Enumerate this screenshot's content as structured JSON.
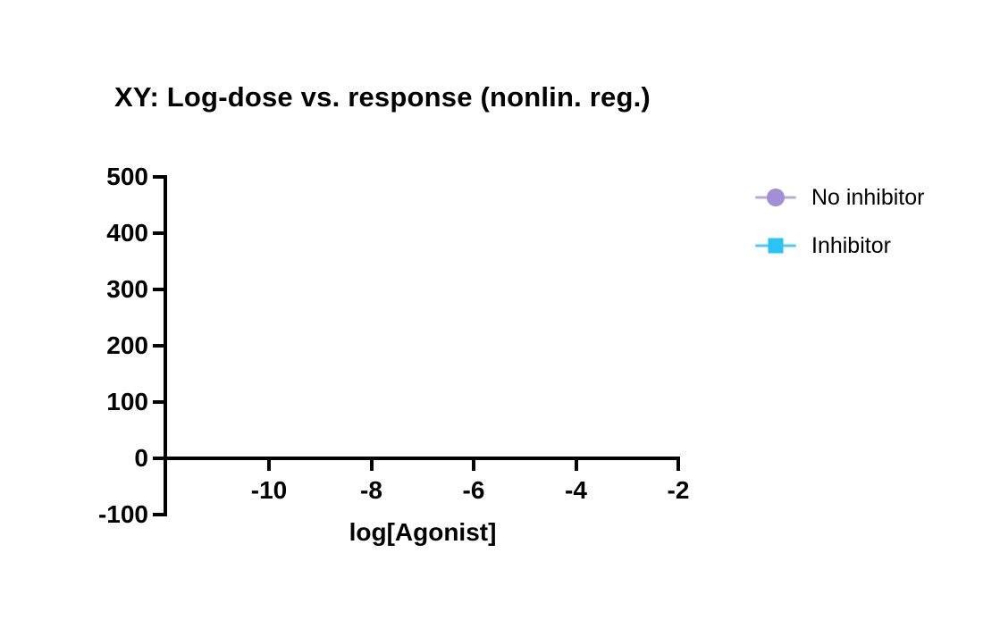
{
  "page": {
    "background_color": "#ffffff",
    "text_color": "#000000"
  },
  "chart": {
    "title": "XY: Log-dose vs. response (nonlin. reg.)",
    "axis_color": "#000000",
    "x_axis": {
      "label": "log[Agonist]",
      "tick_labels": [
        "-10",
        "-8",
        "-6",
        "-4",
        "-2"
      ]
    },
    "y_axis": {
      "label": "",
      "tick_labels": [
        "500",
        "400",
        "300",
        "200",
        "100",
        "0",
        "-100"
      ]
    }
  },
  "legend": {
    "items": [
      {
        "label": "No inhibitor",
        "marker": "circle",
        "marker_color": "#a190d5",
        "line_color": "#b7a9e4"
      },
      {
        "label": "Inhibitor",
        "marker": "square",
        "marker_color": "#29c4f5",
        "line_color": "#4fccf6"
      }
    ]
  },
  "chart_data": {
    "type": "scatter",
    "title": "XY: Log-dose vs. response (nonlin. reg.)",
    "xlabel": "log[Agonist]",
    "ylabel": "",
    "xlim": [
      -12,
      -2
    ],
    "ylim": [
      -100,
      500
    ],
    "x_ticks": [
      -10,
      -8,
      -6,
      -4,
      -2
    ],
    "y_ticks": [
      500,
      400,
      300,
      200,
      100,
      0,
      -100
    ],
    "grid": false,
    "legend_position": "right-outside",
    "series": [
      {
        "name": "No inhibitor",
        "marker": "circle",
        "color": "#a190d5",
        "x": [],
        "y": []
      },
      {
        "name": "Inhibitor",
        "marker": "square",
        "color": "#29c4f5",
        "x": [],
        "y": []
      }
    ]
  }
}
